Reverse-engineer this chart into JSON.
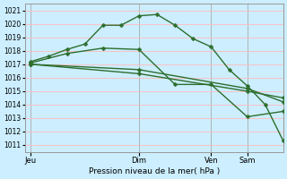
{
  "xlabel": "Pression niveau de la mer( hPa )",
  "bg_color": "#cceeff",
  "grid_color": "#ffbbbb",
  "line_color": "#2d6e2d",
  "ylim": [
    1010.5,
    1021.5
  ],
  "yticks": [
    1011,
    1012,
    1013,
    1014,
    1015,
    1016,
    1017,
    1018,
    1019,
    1020,
    1021
  ],
  "xtick_positions": [
    0,
    72,
    120,
    144
  ],
  "xtick_labels": [
    "Jeu",
    "Dim",
    "Ven",
    "Sam"
  ],
  "xlim": [
    -4,
    168
  ],
  "vlines": [
    0,
    72,
    120,
    144
  ],
  "line1_x": [
    0,
    12,
    24,
    36,
    48,
    60,
    72,
    84,
    96,
    108,
    120,
    132,
    144,
    156,
    168
  ],
  "line1_y": [
    1017.2,
    1017.6,
    1018.1,
    1018.5,
    1019.9,
    1019.9,
    1020.6,
    1020.7,
    1019.9,
    1018.9,
    1018.3,
    1016.6,
    1015.4,
    1014.0,
    1011.3
  ],
  "line2_x": [
    0,
    24,
    48,
    72,
    96,
    120,
    144,
    168
  ],
  "line2_y": [
    1017.1,
    1017.8,
    1018.2,
    1018.1,
    1015.5,
    1015.5,
    1013.1,
    1013.5
  ],
  "line3_x": [
    0,
    72,
    144,
    168
  ],
  "line3_y": [
    1017.0,
    1016.6,
    1015.2,
    1014.2
  ],
  "line4_x": [
    0,
    72,
    144,
    168
  ],
  "line4_y": [
    1017.0,
    1016.3,
    1015.0,
    1014.5
  ],
  "lw": 1.0,
  "ms": 2.5
}
